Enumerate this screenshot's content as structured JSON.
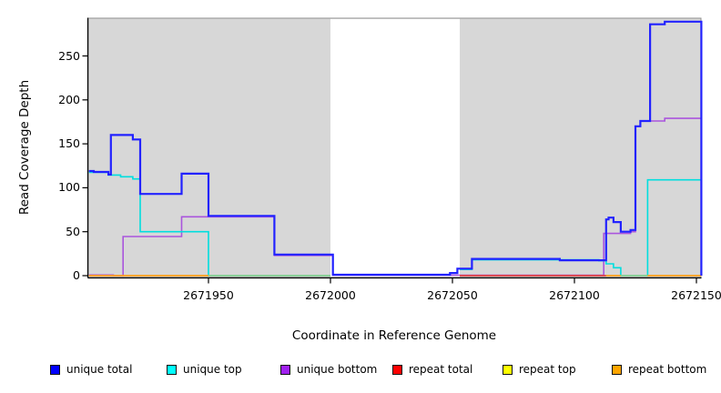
{
  "axes": {
    "x": {
      "label": "Coordinate in Reference Genome"
    },
    "y": {
      "label": "Read Coverage Depth"
    }
  },
  "legend": {
    "items": [
      {
        "label": "unique total",
        "color": "#0000ff"
      },
      {
        "label": "unique top",
        "color": "#00ffff"
      },
      {
        "label": "unique bottom",
        "color": "#a020f0"
      },
      {
        "label": "repeat total",
        "color": "#ff0000"
      },
      {
        "label": "repeat top",
        "color": "#ffff00"
      },
      {
        "label": "repeat bottom",
        "color": "#ffa500"
      }
    ]
  },
  "chart_data": {
    "type": "line",
    "title": "",
    "xlabel": "Coordinate in Reference Genome",
    "ylabel": "Read Coverage Depth",
    "xlim": [
      2671901,
      2672152
    ],
    "ylim": [
      0,
      295
    ],
    "x_ticks": [
      2671950,
      2672000,
      2672050,
      2672100,
      2672150
    ],
    "y_ticks": [
      0,
      50,
      100,
      150,
      200,
      250
    ],
    "grid": false,
    "legend_position": "bottom",
    "plot_background": "#d7d7d7",
    "uncovered_gap": {
      "from": 2672000,
      "to": 2672053
    },
    "series": [
      {
        "name": "unique total",
        "color": "#2222ff",
        "width": 2.2,
        "draw": true,
        "segments": [
          [
            [
              2671901,
              119
            ],
            [
              2671903,
              118
            ],
            [
              2671909,
              115
            ],
            [
              2671910,
              160
            ],
            [
              2671919,
              155
            ],
            [
              2671922,
              93
            ],
            [
              2671939,
              116
            ],
            [
              2671950,
              68
            ],
            [
              2671977,
              24
            ],
            [
              2672001,
              1
            ],
            [
              2672049,
              3
            ],
            [
              2672052,
              8
            ],
            [
              2672058,
              19
            ],
            [
              2672094,
              17.5
            ],
            [
              2672113,
              64
            ],
            [
              2672114,
              66
            ],
            [
              2672116,
              61
            ],
            [
              2672119,
              50
            ],
            [
              2672123,
              52
            ],
            [
              2672125,
              170
            ],
            [
              2672127,
              176
            ],
            [
              2672131,
              286
            ],
            [
              2672137,
              289
            ],
            [
              2672152,
              0
            ]
          ]
        ]
      },
      {
        "name": "unique top",
        "color": "#00dede",
        "width": 1.6,
        "draw": true,
        "segments": [
          [
            [
              2671901,
              117.5
            ],
            [
              2671909,
              114.5
            ],
            [
              2671914,
              112.5
            ],
            [
              2671919,
              110
            ],
            [
              2671922,
              50
            ],
            [
              2671950,
              0
            ],
            [
              2672000,
              0
            ]
          ],
          [
            [
              2672053,
              7
            ],
            [
              2672058,
              18
            ],
            [
              2672110,
              17
            ],
            [
              2672113,
              13.5
            ],
            [
              2672116,
              9
            ],
            [
              2672119,
              0
            ],
            [
              2672130,
              109
            ],
            [
              2672152,
              0
            ]
          ]
        ]
      },
      {
        "name": "unique bottom",
        "color": "#aa55dd",
        "width": 1.6,
        "draw": true,
        "segments": [
          [
            [
              2671901,
              0.7
            ],
            [
              2671911,
              0
            ],
            [
              2671915,
              44.5
            ],
            [
              2671939,
              67
            ],
            [
              2671977,
              23
            ],
            [
              2672001,
              0.5
            ],
            [
              2672053,
              0.5
            ],
            [
              2672112,
              48
            ],
            [
              2672123,
              50
            ],
            [
              2672125,
              170
            ],
            [
              2672127,
              176
            ],
            [
              2672137,
              179
            ],
            [
              2672152,
              0
            ]
          ]
        ]
      },
      {
        "name": "repeat total",
        "color": "#ff0000",
        "width": 1.6,
        "draw": false,
        "segments": [
          [
            [
              2671901,
              0
            ],
            [
              2672152,
              0
            ]
          ]
        ]
      },
      {
        "name": "repeat top",
        "color": "#ffff00",
        "width": 1.6,
        "draw": false,
        "segments": [
          [
            [
              2671901,
              0
            ],
            [
              2672152,
              0
            ]
          ]
        ]
      },
      {
        "name": "repeat bottom",
        "color": "#ffa500",
        "width": 1.8,
        "draw": false,
        "segments": [
          [
            [
              2671901,
              0
            ],
            [
              2672152,
              0
            ]
          ]
        ]
      }
    ],
    "zero_line_segments": [
      {
        "color": "#ffa019",
        "from": 2671901,
        "to": 2671950,
        "note": "repeat bottom visible at depth 0"
      },
      {
        "color": "#8ecf8e",
        "from": 2671950,
        "to": 2672000,
        "note": "repeat top over unique top at depth 0 (yellow+cyan blend)"
      },
      {
        "color": "#e04040",
        "from": 2672053,
        "to": 2672113,
        "note": "repeat total visible at depth 0"
      },
      {
        "color": "#ffa019",
        "from": 2672113,
        "to": 2672119,
        "note": "repeat bottom visible at depth 0"
      },
      {
        "color": "#8ecf8e",
        "from": 2672119,
        "to": 2672130,
        "note": "repeat top over unique top at depth 0"
      },
      {
        "color": "#ffa019",
        "from": 2672130,
        "to": 2672152,
        "note": "repeat bottom visible at depth 0"
      }
    ]
  }
}
